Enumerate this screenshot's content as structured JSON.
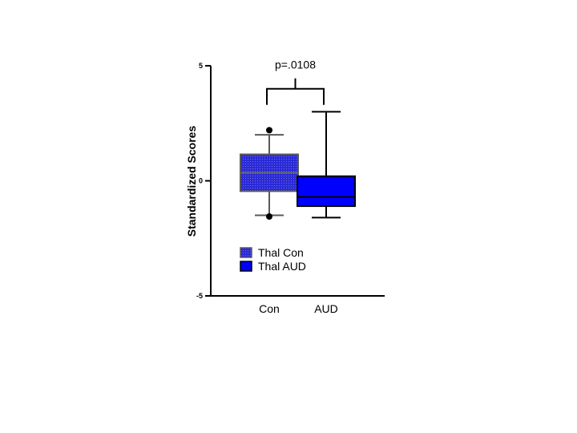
{
  "chart_data": {
    "type": "box",
    "ylabel": "Standardized Scores",
    "ylim": [
      -5,
      5
    ],
    "yticks": [
      5,
      0,
      -5
    ],
    "ytick_labels": [
      "5",
      "0",
      "-5"
    ],
    "categories": [
      "Con",
      "AUD"
    ],
    "series": [
      {
        "name": "Thal Con",
        "category": "Con",
        "color": "#2a2ad6",
        "edge": "#5a5a5a",
        "pattern": "dotted",
        "whisker_low": -1.5,
        "q1": -0.45,
        "median": 0.35,
        "q3": 1.15,
        "whisker_high": 2.0,
        "outliers": [
          2.2,
          -1.55
        ]
      },
      {
        "name": "Thal AUD",
        "category": "AUD",
        "color": "#0000ff",
        "edge": "#000000",
        "pattern": "solid",
        "whisker_low": -1.6,
        "q1": -1.1,
        "median": -0.7,
        "q3": 0.2,
        "whisker_high": 3.0,
        "outliers": []
      }
    ],
    "annotation": {
      "text": "p=.0108",
      "between": [
        "Con",
        "AUD"
      ],
      "bracket_y": 4.0
    },
    "legend": {
      "position": "lower-left",
      "entries": [
        "Thal Con",
        "Thal AUD"
      ]
    },
    "grid": false
  }
}
